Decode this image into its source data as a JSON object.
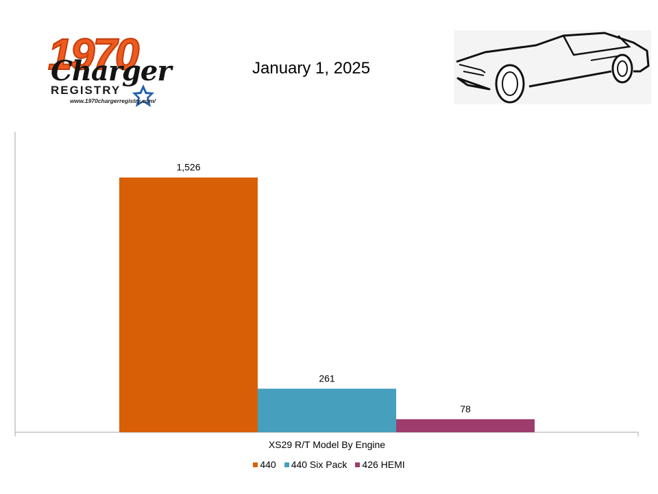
{
  "header": {
    "logo": {
      "number": "1970",
      "script": "Charger",
      "word": "REGISTRY",
      "url": "www.1970chargerregistry.com/"
    },
    "date": "January 1, 2025",
    "car_image": "car-line-drawing"
  },
  "colors": {
    "440": "#d95f07",
    "440 Six Pack": "#459fbd",
    "426 HEMI": "#9e3c6e",
    "axis": "#a6a6a6"
  },
  "chart_data": {
    "type": "bar",
    "categories": [
      "XS29 R/T Model By Engine"
    ],
    "series": [
      {
        "name": "440",
        "values": [
          1526
        ],
        "label": "1,526"
      },
      {
        "name": "440 Six Pack",
        "values": [
          261
        ],
        "label": "261"
      },
      {
        "name": "426 HEMI",
        "values": [
          78
        ],
        "label": "78"
      }
    ],
    "title": "",
    "xlabel": "XS29 R/T Model By Engine",
    "ylabel": "",
    "ylim": [
      0,
      1800
    ],
    "grid": false,
    "legend": "bottom"
  }
}
